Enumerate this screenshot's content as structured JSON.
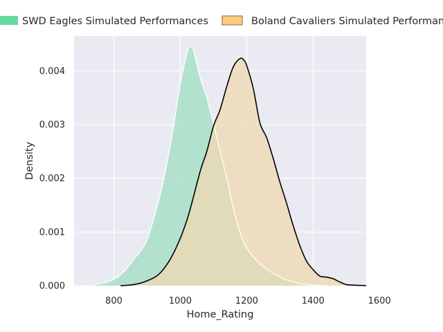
{
  "chart_data": {
    "type": "area",
    "xlabel": "Home_Rating",
    "ylabel": "Density",
    "xlim": [
      680,
      1560
    ],
    "ylim": [
      0,
      0.00465
    ],
    "x_ticks": [
      800,
      1000,
      1200,
      1400,
      1600
    ],
    "x_tick_labels": [
      "800",
      "1000",
      "1200",
      "1400",
      "1600"
    ],
    "y_ticks": [
      0.0,
      0.001,
      0.002,
      0.003,
      0.004
    ],
    "y_tick_labels": [
      "0.000",
      "0.001",
      "0.002",
      "0.003",
      "0.004"
    ],
    "grid": true,
    "legend_position": "top",
    "series": [
      {
        "name": "SWD Eagles Simulated Performances",
        "color": "#66d9a0",
        "fill_color": "#9fdfc2",
        "line_color": "#ffffff",
        "x": [
          740,
          780,
          820,
          860,
          900,
          940,
          960,
          980,
          1000,
          1020,
          1030,
          1040,
          1060,
          1080,
          1100,
          1120,
          1140,
          1160,
          1180,
          1200,
          1240,
          1280,
          1320,
          1360,
          1400,
          1440
        ],
        "y": [
          2e-05,
          7e-05,
          0.0002,
          0.00049,
          0.00086,
          0.00171,
          0.00229,
          0.00298,
          0.00376,
          0.00432,
          0.00445,
          0.00437,
          0.00387,
          0.0035,
          0.00302,
          0.0025,
          0.002,
          0.00143,
          0.001,
          0.0007,
          0.00041,
          0.00023,
          0.00011,
          4e-05,
          1e-05,
          0.0
        ]
      },
      {
        "name": "Boland Cavaliers Simulated Performances",
        "color": "#ffcc80",
        "fill_color": "#f0d8b2",
        "line_color": "#000000",
        "x": [
          820,
          860,
          900,
          940,
          980,
          1020,
          1060,
          1080,
          1100,
          1120,
          1140,
          1160,
          1180,
          1190,
          1200,
          1220,
          1240,
          1260,
          1280,
          1300,
          1320,
          1340,
          1360,
          1380,
          1400,
          1420,
          1440,
          1460,
          1480,
          1500,
          1520,
          1560
        ],
        "y": [
          0.0,
          2e-05,
          9e-05,
          0.00024,
          0.00061,
          0.00122,
          0.00213,
          0.0025,
          0.00297,
          0.00328,
          0.00371,
          0.00408,
          0.00423,
          0.00421,
          0.0041,
          0.00367,
          0.00303,
          0.00276,
          0.00237,
          0.00193,
          0.00154,
          0.00112,
          0.00075,
          0.00046,
          0.0003,
          0.00018,
          0.00016,
          0.00013,
          7e-05,
          2e-05,
          1e-05,
          0.0
        ]
      }
    ]
  }
}
